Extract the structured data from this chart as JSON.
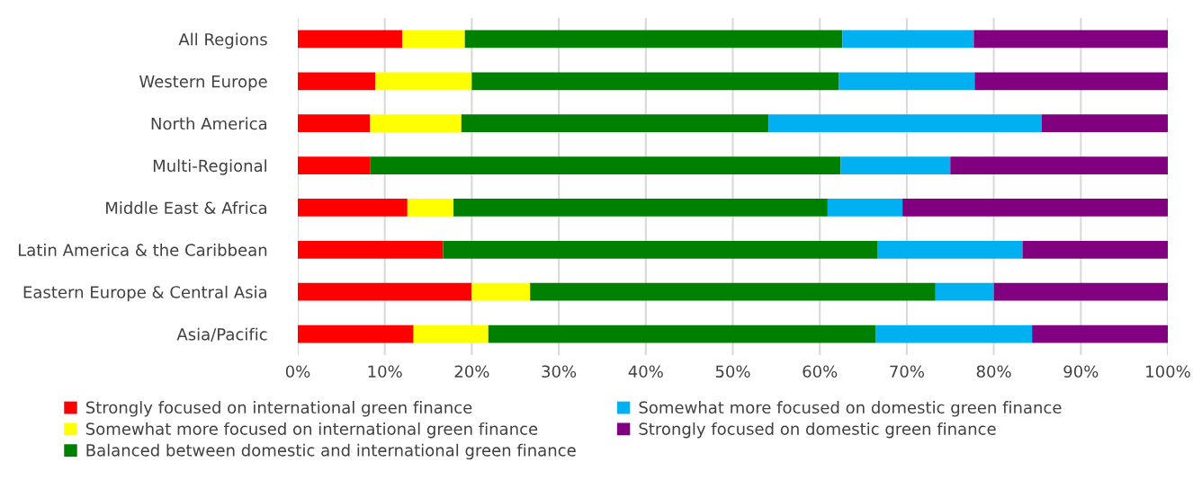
{
  "chart_data": {
    "type": "bar",
    "orientation": "horizontal",
    "stacked": true,
    "categories": [
      "All Regions",
      "Western Europe",
      "North America",
      "Multi-Regional",
      "Middle East & Africa",
      "Latin America & the Caribbean",
      "Eastern Europe & Central Asia",
      "Asia/Pacific"
    ],
    "series": [
      {
        "name": "Strongly focused on international green finance",
        "color": "#ff0000",
        "values": [
          12.0,
          8.9,
          8.3,
          8.3,
          12.6,
          16.7,
          20.0,
          13.3
        ]
      },
      {
        "name": "Somewhat more focused on international green finance",
        "color": "#ffff00",
        "values": [
          7.2,
          11.1,
          10.5,
          0,
          5.3,
          0,
          6.7,
          8.6
        ]
      },
      {
        "name": "Balanced between domestic and international green finance",
        "color": "#008000",
        "values": [
          43.4,
          42.2,
          35.3,
          54.1,
          43.0,
          49.9,
          46.6,
          44.5
        ]
      },
      {
        "name": "Somewhat more focused on domestic green finance",
        "color": "#00b0f0",
        "values": [
          15.1,
          15.6,
          31.4,
          12.6,
          8.6,
          16.7,
          6.7,
          18.0
        ]
      },
      {
        "name": "Strongly focused on domestic green finance",
        "color": "#800080",
        "values": [
          22.3,
          22.2,
          14.5,
          25.0,
          30.5,
          16.7,
          20.0,
          15.6
        ]
      }
    ],
    "xlim": [
      0,
      100
    ],
    "xticks": [
      {
        "value": 0,
        "label": "0%"
      },
      {
        "value": 10,
        "label": "10%"
      },
      {
        "value": 20,
        "label": "20%"
      },
      {
        "value": 30,
        "label": "30%"
      },
      {
        "value": 40,
        "label": "40%"
      },
      {
        "value": 50,
        "label": "50%"
      },
      {
        "value": 60,
        "label": "60%"
      },
      {
        "value": 70,
        "label": "70%"
      },
      {
        "value": 80,
        "label": "80%"
      },
      {
        "value": 90,
        "label": "90%"
      },
      {
        "value": 100,
        "label": "100%"
      }
    ],
    "grid": "x",
    "legend": "bottom"
  }
}
